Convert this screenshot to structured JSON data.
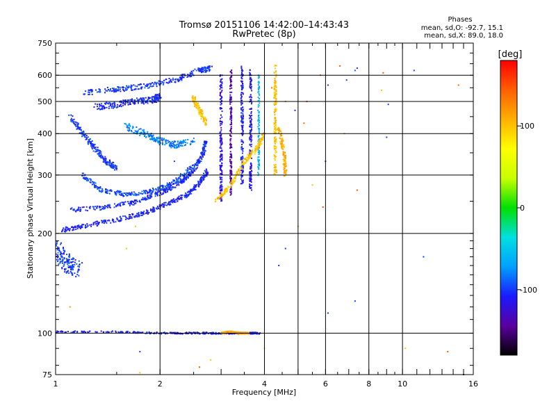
{
  "chart_data": {
    "type": "scatter",
    "title": "Tromsø 20151106 14:42:00–14:43:43",
    "subtitle": "RwPretec (8p)",
    "xlabel": "Frequency [MHz]",
    "ylabel": "Stationary phase Virtual Height [km]",
    "x_scale": "log",
    "y_scale": "log",
    "xlim": [
      1,
      16
    ],
    "ylim": [
      75,
      750
    ],
    "x_ticks": [
      1,
      2,
      4,
      6,
      8,
      10,
      16
    ],
    "x_tick_labels": [
      "1",
      "2",
      "4",
      "6",
      "8",
      "10",
      "16"
    ],
    "y_ticks": [
      75,
      100,
      200,
      300,
      400,
      500,
      600,
      750
    ],
    "y_tick_labels": [
      "75",
      "100",
      "200",
      "300",
      "400",
      "500",
      "600",
      "750"
    ],
    "x_grid": [
      2,
      4,
      5,
      6,
      8,
      10
    ],
    "y_grid": [
      100,
      200,
      300,
      400,
      500,
      600
    ],
    "grid": true,
    "stats": {
      "heading": "Phases",
      "o_line": "mean, sd,O: -92.7, 15.1",
      "x_line": "mean, sd,X:  89.0, 18.0"
    },
    "colorbar": {
      "label": "[deg]",
      "range": [
        -180,
        180
      ],
      "ticks": [
        100,
        0,
        -100
      ],
      "tick_labels": [
        "100",
        "0",
        "-100"
      ],
      "stops": [
        "#000000",
        "#5a00a0",
        "#1a1aff",
        "#00a0ff",
        "#00e0e0",
        "#00e000",
        "#c8ff00",
        "#ffff00",
        "#ffb000",
        "#ff6000",
        "#ff0000"
      ]
    },
    "series": [
      {
        "trace": [
          [
            1.0,
            180
          ],
          [
            1.05,
            168
          ],
          [
            1.1,
            160
          ],
          [
            1.15,
            155
          ]
        ],
        "phase": -100,
        "spread": 0.08
      },
      {
        "trace": [
          [
            1.05,
            205
          ],
          [
            1.2,
            210
          ],
          [
            1.5,
            220
          ],
          [
            1.8,
            230
          ],
          [
            2.1,
            245
          ],
          [
            2.4,
            262
          ],
          [
            2.6,
            285
          ],
          [
            2.75,
            310
          ]
        ],
        "phase": -108,
        "spread": 0.02
      },
      {
        "trace": [
          [
            1.1,
            235
          ],
          [
            1.4,
            240
          ],
          [
            1.7,
            248
          ],
          [
            2.0,
            265
          ],
          [
            2.3,
            285
          ],
          [
            2.5,
            310
          ],
          [
            2.65,
            345
          ],
          [
            2.72,
            380
          ]
        ],
        "phase": -105,
        "spread": 0.02
      },
      {
        "trace": [
          [
            1.2,
            300
          ],
          [
            1.35,
            270
          ],
          [
            1.6,
            262
          ],
          [
            1.9,
            268
          ],
          [
            2.2,
            285
          ],
          [
            2.5,
            320
          ]
        ],
        "phase": -95,
        "spread": 0.02
      },
      {
        "trace": [
          [
            1.1,
            450
          ],
          [
            1.2,
            400
          ],
          [
            1.3,
            360
          ],
          [
            1.4,
            330
          ],
          [
            1.5,
            315
          ]
        ],
        "phase": -100,
        "spread": 0.025
      },
      {
        "trace": [
          [
            1.2,
            530
          ],
          [
            1.5,
            545
          ],
          [
            1.8,
            555
          ],
          [
            2.2,
            580
          ],
          [
            2.6,
            620
          ],
          [
            2.8,
            630
          ]
        ],
        "phase": -100,
        "spread": 0.025
      },
      {
        "trace": [
          [
            1.3,
            480
          ],
          [
            1.5,
            490
          ],
          [
            1.7,
            500
          ],
          [
            1.9,
            505
          ],
          [
            2.0,
            520
          ]
        ],
        "phase": -105,
        "spread": 0.03
      },
      {
        "trace": [
          [
            1.6,
            420
          ],
          [
            1.8,
            400
          ],
          [
            2.0,
            380
          ],
          [
            2.2,
            370
          ],
          [
            2.5,
            380
          ]
        ],
        "phase": -80,
        "spread": 0.03
      },
      {
        "trace": [
          [
            3.0,
            600
          ],
          [
            3.0,
            420
          ],
          [
            3.0,
            320
          ],
          [
            3.0,
            250
          ]
        ],
        "phase": -120,
        "spread": 0.015
      },
      {
        "trace": [
          [
            3.2,
            620
          ],
          [
            3.2,
            450
          ],
          [
            3.2,
            320
          ],
          [
            3.2,
            260
          ]
        ],
        "phase": -140,
        "spread": 0.012
      },
      {
        "trace": [
          [
            3.45,
            640
          ],
          [
            3.45,
            480
          ],
          [
            3.45,
            360
          ],
          [
            3.45,
            280
          ]
        ],
        "phase": -110,
        "spread": 0.015
      },
      {
        "trace": [
          [
            3.65,
            620
          ],
          [
            3.65,
            450
          ],
          [
            3.65,
            330
          ],
          [
            3.65,
            270
          ]
        ],
        "phase": -115,
        "spread": 0.015
      },
      {
        "trace": [
          [
            3.85,
            600
          ],
          [
            3.85,
            420
          ],
          [
            3.85,
            300
          ]
        ],
        "phase": -60,
        "spread": 0.01
      },
      {
        "trace": [
          [
            2.9,
            250
          ],
          [
            3.2,
            280
          ],
          [
            3.5,
            330
          ],
          [
            3.8,
            360
          ],
          [
            4.0,
            400
          ]
        ],
        "phase": 100,
        "spread": 0.02
      },
      {
        "trace": [
          [
            4.3,
            640
          ],
          [
            4.3,
            500
          ],
          [
            4.3,
            400
          ],
          [
            4.3,
            300
          ]
        ],
        "phase": 100,
        "spread": 0.015
      },
      {
        "trace": [
          [
            4.4,
            420
          ],
          [
            4.55,
            350
          ],
          [
            4.6,
            300
          ]
        ],
        "phase": 110,
        "spread": 0.02
      },
      {
        "trace": [
          [
            2.5,
            510
          ],
          [
            2.6,
            470
          ],
          [
            2.7,
            430
          ]
        ],
        "phase": 100,
        "spread": 0.025
      },
      {
        "trace": [
          [
            1.0,
            101
          ],
          [
            1.5,
            101
          ],
          [
            2.0,
            100
          ],
          [
            2.5,
            100
          ],
          [
            3.0,
            100
          ],
          [
            3.5,
            100
          ],
          [
            3.9,
            100
          ]
        ],
        "phase": -110,
        "spread": 0.008
      },
      {
        "trace": [
          [
            3.0,
            100
          ],
          [
            3.2,
            101
          ],
          [
            3.4,
            100
          ],
          [
            3.6,
            100
          ]
        ],
        "phase": 110,
        "spread": 0.008
      }
    ],
    "scatter_points": [
      [
        6.6,
        640,
        150
      ],
      [
        7.4,
        630,
        -110
      ],
      [
        8.8,
        610,
        150
      ],
      [
        10.8,
        620,
        -100
      ],
      [
        14.5,
        560,
        140
      ],
      [
        6.1,
        560,
        -100
      ],
      [
        8.7,
        540,
        100
      ],
      [
        7.3,
        620,
        -90
      ],
      [
        5.8,
        600,
        150
      ],
      [
        9.1,
        490,
        -100
      ],
      [
        4.6,
        500,
        120
      ],
      [
        4.9,
        470,
        -110
      ],
      [
        5.2,
        430,
        140
      ],
      [
        6.8,
        400,
        110
      ],
      [
        9.0,
        390,
        -100
      ],
      [
        6.0,
        330,
        -100
      ],
      [
        5.5,
        280,
        100
      ],
      [
        7.4,
        270,
        150
      ],
      [
        5.9,
        240,
        150
      ],
      [
        5.0,
        210,
        110
      ],
      [
        4.6,
        180,
        -100
      ],
      [
        4.4,
        160,
        -100
      ],
      [
        7.3,
        125,
        -100
      ],
      [
        6.1,
        115,
        -100
      ],
      [
        11.5,
        170,
        -100
      ],
      [
        10.2,
        90,
        100
      ],
      [
        13.5,
        88,
        150
      ],
      [
        1.75,
        88,
        -100
      ],
      [
        1.75,
        76,
        100
      ],
      [
        2.6,
        79,
        150
      ],
      [
        2.8,
        83,
        100
      ],
      [
        15.0,
        75,
        -100
      ],
      [
        4.0,
        90,
        100
      ],
      [
        1.1,
        120,
        120
      ],
      [
        1.6,
        180,
        100
      ],
      [
        1.7,
        210,
        100
      ],
      [
        2.2,
        330,
        -100
      ],
      [
        5.3,
        500,
        150
      ],
      [
        4.2,
        550,
        140
      ],
      [
        6.9,
        580,
        -100
      ]
    ]
  }
}
